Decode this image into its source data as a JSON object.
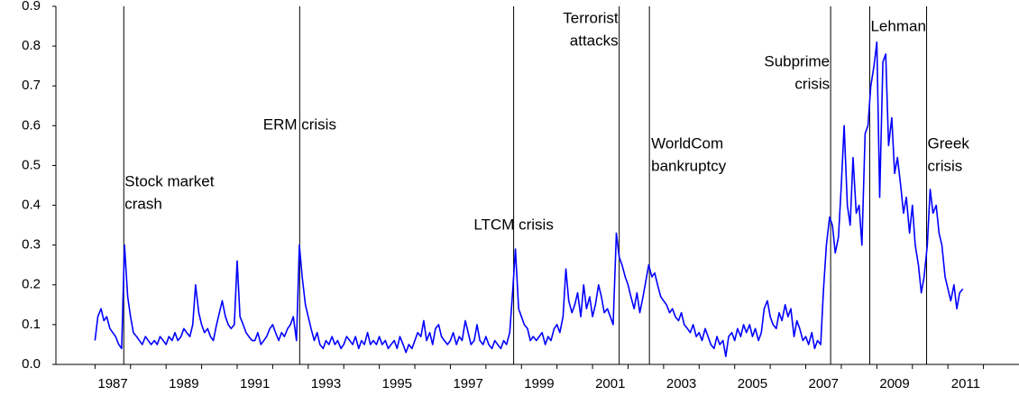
{
  "chart_data": {
    "type": "line",
    "x": [
      1987.0,
      1987.08,
      1987.17,
      1987.25,
      1987.33,
      1987.42,
      1987.5,
      1987.58,
      1987.67,
      1987.75,
      1987.83,
      1987.92,
      1988.0,
      1988.08,
      1988.17,
      1988.25,
      1988.33,
      1988.42,
      1988.5,
      1988.58,
      1988.67,
      1988.75,
      1988.83,
      1988.92,
      1989.0,
      1989.08,
      1989.17,
      1989.25,
      1989.33,
      1989.42,
      1989.5,
      1989.58,
      1989.67,
      1989.75,
      1989.83,
      1989.92,
      1990.0,
      1990.08,
      1990.17,
      1990.25,
      1990.33,
      1990.42,
      1990.5,
      1990.58,
      1990.67,
      1990.75,
      1990.83,
      1990.92,
      1991.0,
      1991.08,
      1991.17,
      1991.25,
      1991.33,
      1991.42,
      1991.5,
      1991.58,
      1991.67,
      1991.75,
      1991.83,
      1991.92,
      1992.0,
      1992.08,
      1992.17,
      1992.25,
      1992.33,
      1992.42,
      1992.5,
      1992.58,
      1992.67,
      1992.75,
      1992.83,
      1992.92,
      1993.0,
      1993.08,
      1993.17,
      1993.25,
      1993.33,
      1993.42,
      1993.5,
      1993.58,
      1993.67,
      1993.75,
      1993.83,
      1993.92,
      1994.0,
      1994.08,
      1994.17,
      1994.25,
      1994.33,
      1994.42,
      1994.5,
      1994.58,
      1994.67,
      1994.75,
      1994.83,
      1994.92,
      1995.0,
      1995.08,
      1995.17,
      1995.25,
      1995.33,
      1995.42,
      1995.5,
      1995.58,
      1995.67,
      1995.75,
      1995.83,
      1995.92,
      1996.0,
      1996.08,
      1996.17,
      1996.25,
      1996.33,
      1996.42,
      1996.5,
      1996.58,
      1996.67,
      1996.75,
      1996.83,
      1996.92,
      1997.0,
      1997.08,
      1997.17,
      1997.25,
      1997.33,
      1997.42,
      1997.5,
      1997.58,
      1997.67,
      1997.75,
      1997.83,
      1997.92,
      1998.0,
      1998.08,
      1998.17,
      1998.25,
      1998.33,
      1998.42,
      1998.5,
      1998.58,
      1998.67,
      1998.75,
      1998.83,
      1998.92,
      1999.0,
      1999.08,
      1999.17,
      1999.25,
      1999.33,
      1999.42,
      1999.5,
      1999.58,
      1999.67,
      1999.75,
      1999.83,
      1999.92,
      2000.0,
      2000.08,
      2000.17,
      2000.25,
      2000.33,
      2000.42,
      2000.5,
      2000.58,
      2000.67,
      2000.75,
      2000.83,
      2000.92,
      2001.0,
      2001.08,
      2001.17,
      2001.25,
      2001.33,
      2001.42,
      2001.5,
      2001.58,
      2001.67,
      2001.75,
      2001.83,
      2001.92,
      2002.0,
      2002.08,
      2002.17,
      2002.25,
      2002.33,
      2002.42,
      2002.5,
      2002.58,
      2002.67,
      2002.75,
      2002.83,
      2002.92,
      2003.0,
      2003.08,
      2003.17,
      2003.25,
      2003.33,
      2003.42,
      2003.5,
      2003.58,
      2003.67,
      2003.75,
      2003.83,
      2003.92,
      2004.0,
      2004.08,
      2004.17,
      2004.25,
      2004.33,
      2004.42,
      2004.5,
      2004.58,
      2004.67,
      2004.75,
      2004.83,
      2004.92,
      2005.0,
      2005.08,
      2005.17,
      2005.25,
      2005.33,
      2005.42,
      2005.5,
      2005.58,
      2005.67,
      2005.75,
      2005.83,
      2005.92,
      2006.0,
      2006.08,
      2006.17,
      2006.25,
      2006.33,
      2006.42,
      2006.5,
      2006.58,
      2006.67,
      2006.75,
      2006.83,
      2006.92,
      2007.0,
      2007.08,
      2007.17,
      2007.25,
      2007.33,
      2007.42,
      2007.5,
      2007.58,
      2007.67,
      2007.75,
      2007.83,
      2007.92,
      2008.0,
      2008.08,
      2008.17,
      2008.25,
      2008.33,
      2008.42,
      2008.5,
      2008.58,
      2008.67,
      2008.75,
      2008.83,
      2008.92,
      2009.0,
      2009.08,
      2009.17,
      2009.25,
      2009.33,
      2009.42,
      2009.5,
      2009.58,
      2009.67,
      2009.75,
      2009.83,
      2009.92,
      2010.0,
      2010.08,
      2010.17,
      2010.25,
      2010.33,
      2010.42,
      2010.5,
      2010.58,
      2010.67,
      2010.75,
      2010.83,
      2010.92,
      2011.0,
      2011.08,
      2011.17,
      2011.25,
      2011.33,
      2011.42
    ],
    "series": [
      {
        "color": "#0000ff",
        "values": [
          0.06,
          0.12,
          0.14,
          0.11,
          0.12,
          0.09,
          0.08,
          0.07,
          0.05,
          0.04,
          0.3,
          0.17,
          0.12,
          0.08,
          0.07,
          0.06,
          0.05,
          0.07,
          0.06,
          0.05,
          0.06,
          0.05,
          0.07,
          0.06,
          0.05,
          0.07,
          0.06,
          0.08,
          0.06,
          0.07,
          0.09,
          0.08,
          0.07,
          0.1,
          0.2,
          0.13,
          0.1,
          0.08,
          0.09,
          0.07,
          0.06,
          0.1,
          0.13,
          0.16,
          0.12,
          0.1,
          0.09,
          0.1,
          0.26,
          0.12,
          0.1,
          0.08,
          0.07,
          0.06,
          0.06,
          0.08,
          0.05,
          0.06,
          0.07,
          0.09,
          0.1,
          0.08,
          0.06,
          0.08,
          0.07,
          0.09,
          0.1,
          0.12,
          0.06,
          0.3,
          0.22,
          0.15,
          0.12,
          0.09,
          0.06,
          0.08,
          0.05,
          0.04,
          0.06,
          0.05,
          0.07,
          0.05,
          0.06,
          0.04,
          0.05,
          0.07,
          0.06,
          0.05,
          0.07,
          0.04,
          0.06,
          0.05,
          0.08,
          0.05,
          0.06,
          0.05,
          0.07,
          0.05,
          0.06,
          0.04,
          0.05,
          0.06,
          0.04,
          0.07,
          0.05,
          0.03,
          0.05,
          0.04,
          0.06,
          0.08,
          0.07,
          0.11,
          0.06,
          0.08,
          0.05,
          0.09,
          0.1,
          0.07,
          0.06,
          0.05,
          0.06,
          0.08,
          0.05,
          0.07,
          0.06,
          0.11,
          0.08,
          0.05,
          0.06,
          0.1,
          0.06,
          0.05,
          0.07,
          0.05,
          0.04,
          0.06,
          0.05,
          0.04,
          0.06,
          0.05,
          0.08,
          0.18,
          0.29,
          0.14,
          0.12,
          0.1,
          0.09,
          0.06,
          0.07,
          0.06,
          0.07,
          0.08,
          0.05,
          0.07,
          0.06,
          0.09,
          0.1,
          0.08,
          0.12,
          0.24,
          0.16,
          0.13,
          0.15,
          0.18,
          0.12,
          0.2,
          0.14,
          0.17,
          0.12,
          0.15,
          0.2,
          0.17,
          0.13,
          0.14,
          0.12,
          0.1,
          0.33,
          0.27,
          0.25,
          0.22,
          0.2,
          0.17,
          0.14,
          0.18,
          0.13,
          0.17,
          0.21,
          0.25,
          0.22,
          0.23,
          0.2,
          0.17,
          0.16,
          0.15,
          0.13,
          0.14,
          0.12,
          0.11,
          0.13,
          0.1,
          0.09,
          0.08,
          0.1,
          0.07,
          0.08,
          0.06,
          0.09,
          0.07,
          0.05,
          0.04,
          0.07,
          0.05,
          0.06,
          0.02,
          0.07,
          0.08,
          0.06,
          0.09,
          0.07,
          0.1,
          0.08,
          0.1,
          0.07,
          0.09,
          0.06,
          0.08,
          0.14,
          0.16,
          0.12,
          0.1,
          0.09,
          0.13,
          0.11,
          0.15,
          0.12,
          0.14,
          0.07,
          0.11,
          0.09,
          0.06,
          0.07,
          0.05,
          0.08,
          0.04,
          0.06,
          0.05,
          0.19,
          0.3,
          0.37,
          0.35,
          0.28,
          0.32,
          0.45,
          0.6,
          0.4,
          0.35,
          0.52,
          0.38,
          0.4,
          0.3,
          0.58,
          0.6,
          0.7,
          0.75,
          0.81,
          0.42,
          0.76,
          0.78,
          0.55,
          0.62,
          0.48,
          0.52,
          0.45,
          0.38,
          0.42,
          0.33,
          0.4,
          0.3,
          0.25,
          0.18,
          0.22,
          0.3,
          0.44,
          0.38,
          0.4,
          0.33,
          0.3,
          0.22,
          0.19,
          0.16,
          0.2,
          0.14,
          0.18,
          0.19
        ]
      }
    ],
    "xlim": [
      1985.9,
      2013.0
    ],
    "xticks": [
      {
        "value": 1987.5,
        "label": "1987"
      },
      {
        "value": 1989.5,
        "label": "1989"
      },
      {
        "value": 1991.5,
        "label": "1991"
      },
      {
        "value": 1993.5,
        "label": "1993"
      },
      {
        "value": 1995.5,
        "label": "1995"
      },
      {
        "value": 1997.5,
        "label": "1997"
      },
      {
        "value": 1999.5,
        "label": "1999"
      },
      {
        "value": 2001.5,
        "label": "2001"
      },
      {
        "value": 2003.5,
        "label": "2003"
      },
      {
        "value": 2005.5,
        "label": "2005"
      },
      {
        "value": 2007.5,
        "label": "2007"
      },
      {
        "value": 2009.5,
        "label": "2009"
      },
      {
        "value": 2011.5,
        "label": "2011"
      }
    ],
    "x_minor_ticks": [
      1987,
      1988,
      1989,
      1990,
      1991,
      1992,
      1993,
      1994,
      1995,
      1996,
      1997,
      1998,
      1999,
      2000,
      2001,
      2002,
      2003,
      2004,
      2005,
      2006,
      2007,
      2008,
      2009,
      2010,
      2011,
      2012
    ],
    "ylim": [
      0,
      0.9
    ],
    "yticks": [
      {
        "value": 0,
        "label": "0.0"
      },
      0.1,
      0.2,
      0.3,
      0.4,
      0.5,
      0.6,
      0.7,
      0.8,
      0.9
    ],
    "annotations": [
      {
        "x": 1987.81,
        "lines": [
          "Stock market",
          "crash"
        ]
      },
      {
        "x": 1992.76,
        "lines": [
          "ERM crisis"
        ]
      },
      {
        "x": 1998.78,
        "lines": [
          "LTCM crisis"
        ]
      },
      {
        "x": 2001.75,
        "lines": [
          "Terrorist",
          "attacks"
        ]
      },
      {
        "x": 2002.6,
        "lines": [
          "WorldCom",
          "bankruptcy"
        ]
      },
      {
        "x": 2007.7,
        "lines": [
          "Subprime",
          "crisis"
        ]
      },
      {
        "x": 2008.8,
        "lines": [
          "Lehman"
        ]
      },
      {
        "x": 2010.4,
        "lines": [
          "Greek",
          "crisis"
        ]
      }
    ]
  }
}
